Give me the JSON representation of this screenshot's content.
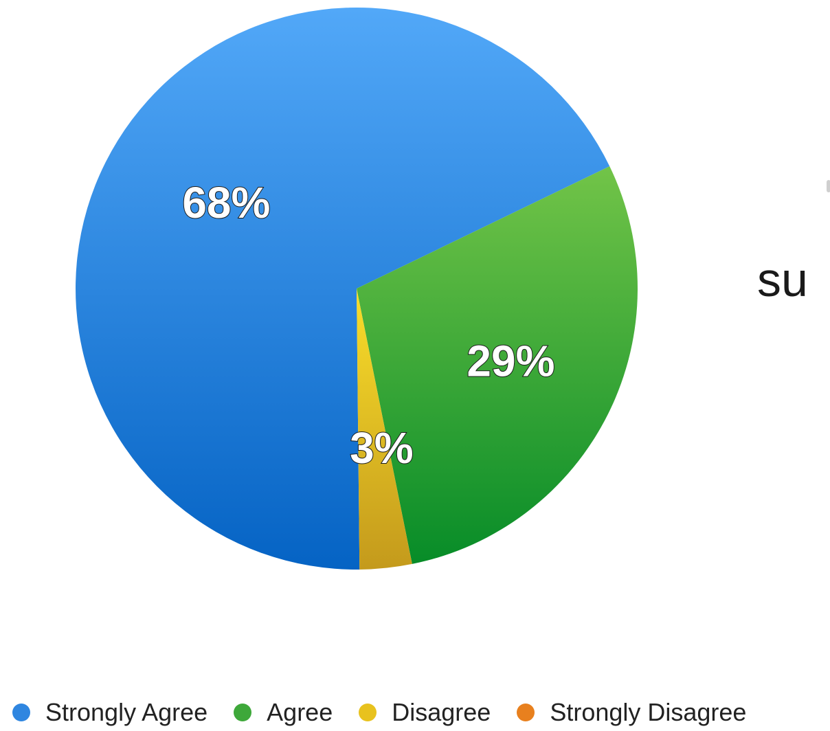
{
  "chart_data": {
    "type": "pie",
    "title": "",
    "categories": [
      "Strongly Agree",
      "Agree",
      "Disagree",
      "Strongly Disagree"
    ],
    "values": [
      68,
      29,
      3,
      0
    ],
    "data_labels": [
      "68%",
      "29%",
      "3%",
      ""
    ],
    "colors": [
      "#2f86e0",
      "#3ea83a",
      "#e8c21e",
      "#e8801e"
    ],
    "legend_placement": "bottom"
  },
  "side_text": "su"
}
